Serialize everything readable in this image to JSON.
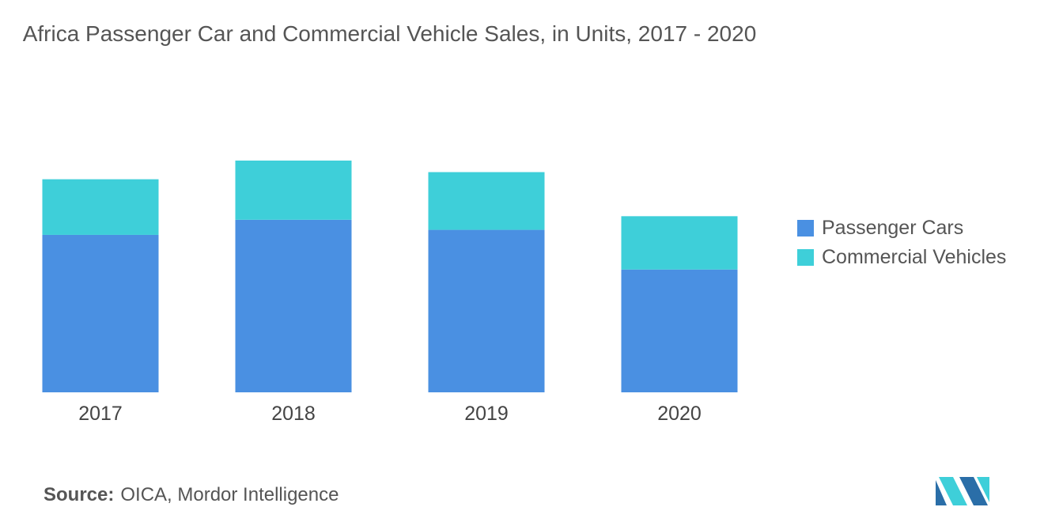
{
  "title": "Africa Passenger Car and Commercial Vehicle Sales, in Units, 2017 - 2020",
  "source": {
    "label": "Source:",
    "text": "OICA, Mordor Intelligence"
  },
  "colors": {
    "passenger": "#4a90e2",
    "commercial": "#3ecfd9",
    "logo_dark": "#2a6ea8",
    "logo_light": "#3ecfd9"
  },
  "chart_data": {
    "type": "bar",
    "stacked": true,
    "title": "Africa Passenger Car and Commercial Vehicle Sales, in Units, 2017 - 2020",
    "xlabel": "",
    "ylabel": "",
    "grid": false,
    "legend_position": "right",
    "categories": [
      "2017",
      "2018",
      "2019",
      "2020"
    ],
    "series": [
      {
        "name": "Passenger Cars",
        "color": "#4a90e2",
        "values": [
          750000,
          822000,
          774000,
          585000
        ]
      },
      {
        "name": "Commercial Vehicles",
        "color": "#3ecfd9",
        "values": [
          265000,
          282000,
          275000,
          254000
        ]
      }
    ],
    "ylim": [
      0,
      1104000
    ]
  }
}
